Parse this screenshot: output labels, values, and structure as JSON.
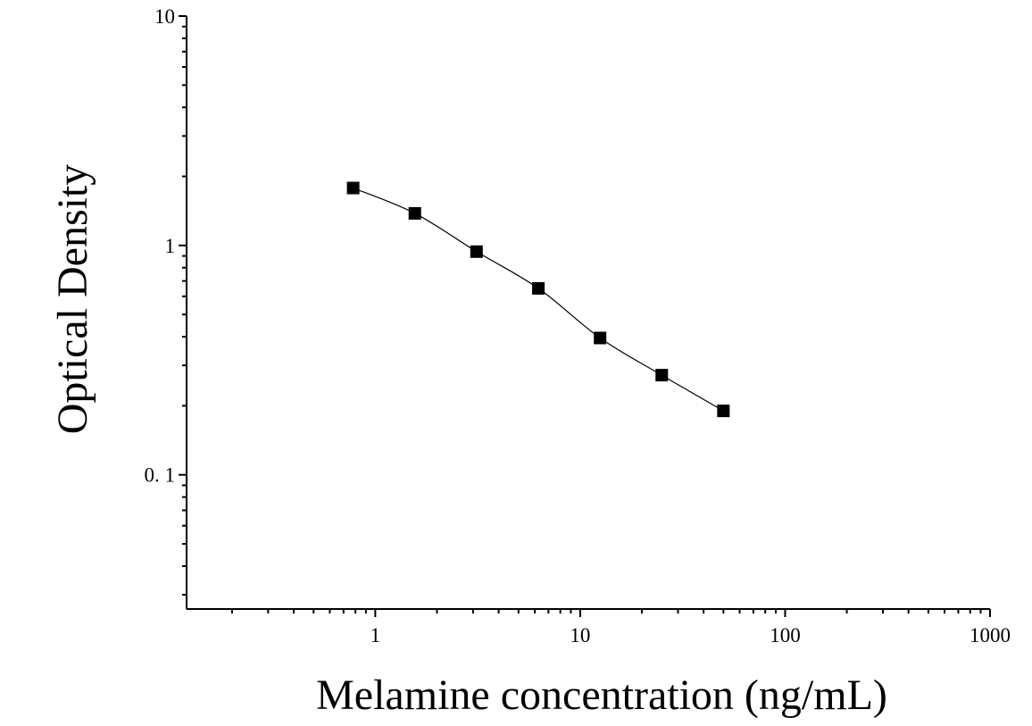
{
  "chart_data": {
    "type": "scatter",
    "title": "",
    "xlabel": "Melamine concentration (ng/mL)",
    "ylabel": "Optical Density",
    "x_scale": "log",
    "y_scale": "log",
    "xlim": [
      0.12,
      1000
    ],
    "ylim": [
      0.026,
      10
    ],
    "x_ticks": [
      {
        "value": 1,
        "label": "1"
      },
      {
        "value": 10,
        "label": "10"
      },
      {
        "value": 100,
        "label": "100"
      },
      {
        "value": 1000,
        "label": "1000"
      }
    ],
    "y_ticks": [
      {
        "value": 0.1,
        "label": "0. 1"
      },
      {
        "value": 1,
        "label": "1"
      },
      {
        "value": 10,
        "label": "10"
      }
    ],
    "grid": false,
    "legend": "none",
    "series": [
      {
        "marker": "square",
        "color": "#000000",
        "fit_line": true,
        "x": [
          0.78,
          1.56,
          3.12,
          6.25,
          12.5,
          25,
          50
        ],
        "y": [
          1.78,
          1.38,
          0.94,
          0.65,
          0.395,
          0.272,
          0.19
        ]
      }
    ]
  }
}
